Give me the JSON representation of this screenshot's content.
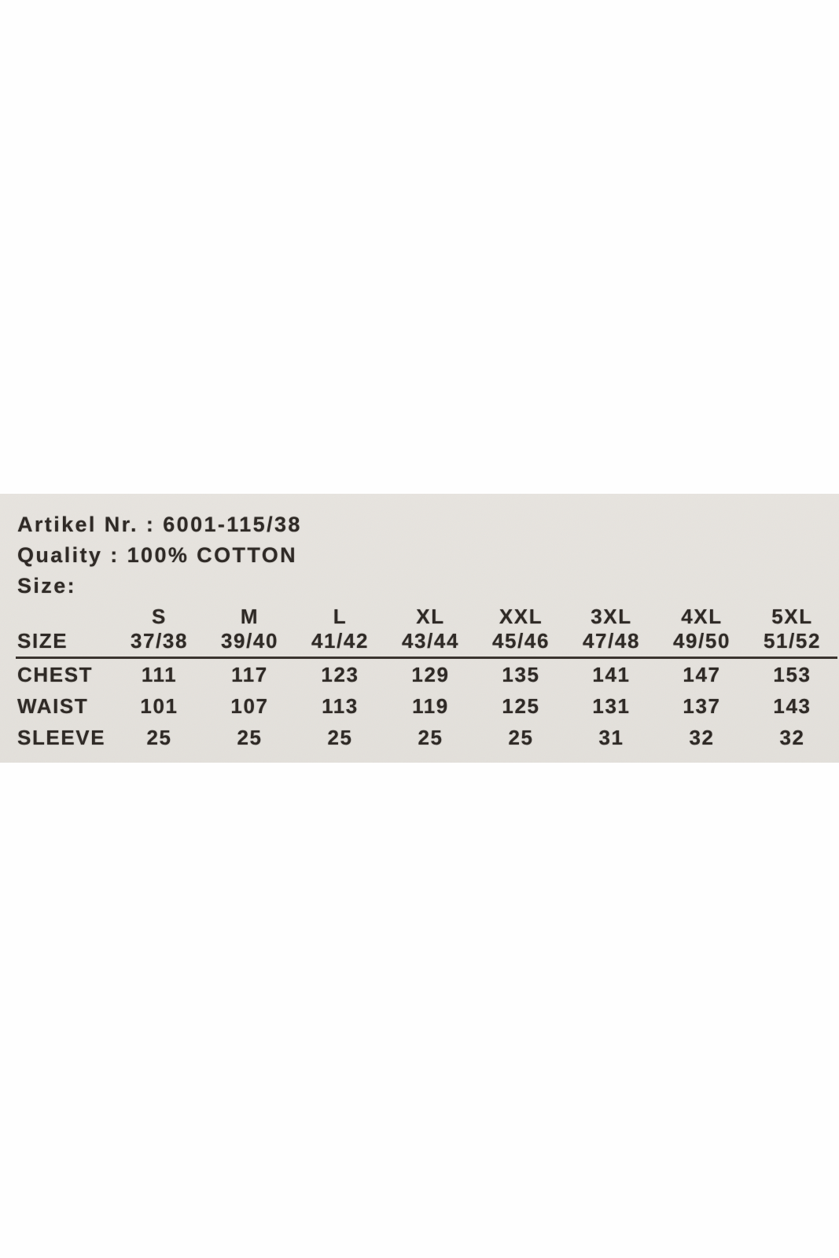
{
  "colors": {
    "page_bg": "#fefefe",
    "label_bg": "#e5e2dd",
    "text": "#2f2a26",
    "rule": "#3a342f"
  },
  "product_label": {
    "artikel": {
      "key": "Artikel Nr. :",
      "value": "6001-115/38"
    },
    "quality": {
      "key": "Quality :",
      "value": "100% COTTON"
    },
    "size_heading": "Size:"
  },
  "size_table": {
    "corner_header": "SIZE",
    "columns": [
      {
        "size": "S",
        "range": "37/38"
      },
      {
        "size": "M",
        "range": "39/40"
      },
      {
        "size": "L",
        "range": "41/42"
      },
      {
        "size": "XL",
        "range": "43/44"
      },
      {
        "size": "XXL",
        "range": "45/46"
      },
      {
        "size": "3XL",
        "range": "47/48"
      },
      {
        "size": "4XL",
        "range": "49/50"
      },
      {
        "size": "5XL",
        "range": "51/52"
      }
    ],
    "rows": [
      {
        "label": "CHEST",
        "values": [
          "111",
          "117",
          "123",
          "129",
          "135",
          "141",
          "147",
          "153"
        ]
      },
      {
        "label": "WAIST",
        "values": [
          "101",
          "107",
          "113",
          "119",
          "125",
          "131",
          "137",
          "143"
        ]
      },
      {
        "label": "SLEEVE",
        "values": [
          "25",
          "25",
          "25",
          "25",
          "25",
          "31",
          "32",
          "32"
        ]
      }
    ]
  }
}
